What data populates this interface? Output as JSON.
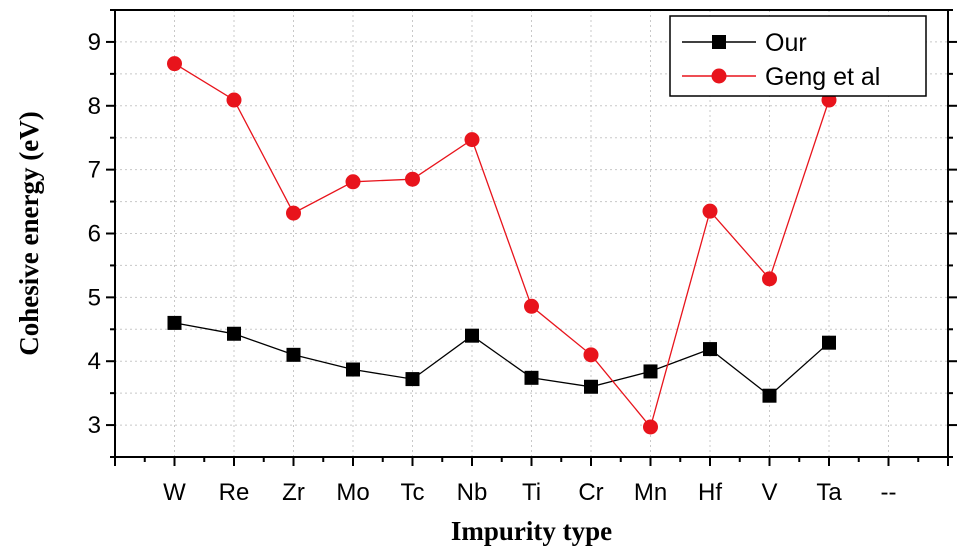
{
  "chart_data": {
    "type": "line",
    "title": "",
    "xlabel": "Impurity type",
    "ylabel": "Cohesive energy (eV)",
    "categories": [
      "W",
      "Re",
      "Zr",
      "Mo",
      "Tc",
      "Nb",
      "Ti",
      "Cr",
      "Mn",
      "Hf",
      "V",
      "Ta"
    ],
    "extra_tick_label": "--",
    "ylim": [
      2.5,
      9.5
    ],
    "yticks": [
      3,
      4,
      5,
      6,
      7,
      8,
      9
    ],
    "grid": true,
    "legend_position": "top-right",
    "series": [
      {
        "name": "Our",
        "color": "#000000",
        "marker": "square",
        "values": [
          4.6,
          4.43,
          4.1,
          3.87,
          3.72,
          4.4,
          3.74,
          3.6,
          3.84,
          4.19,
          3.46,
          4.29
        ]
      },
      {
        "name": "Geng et al",
        "color": "#e8141c",
        "marker": "circle",
        "values": [
          8.66,
          8.09,
          6.32,
          6.81,
          6.85,
          7.47,
          4.86,
          4.1,
          2.97,
          6.35,
          5.29,
          8.09
        ]
      }
    ]
  }
}
